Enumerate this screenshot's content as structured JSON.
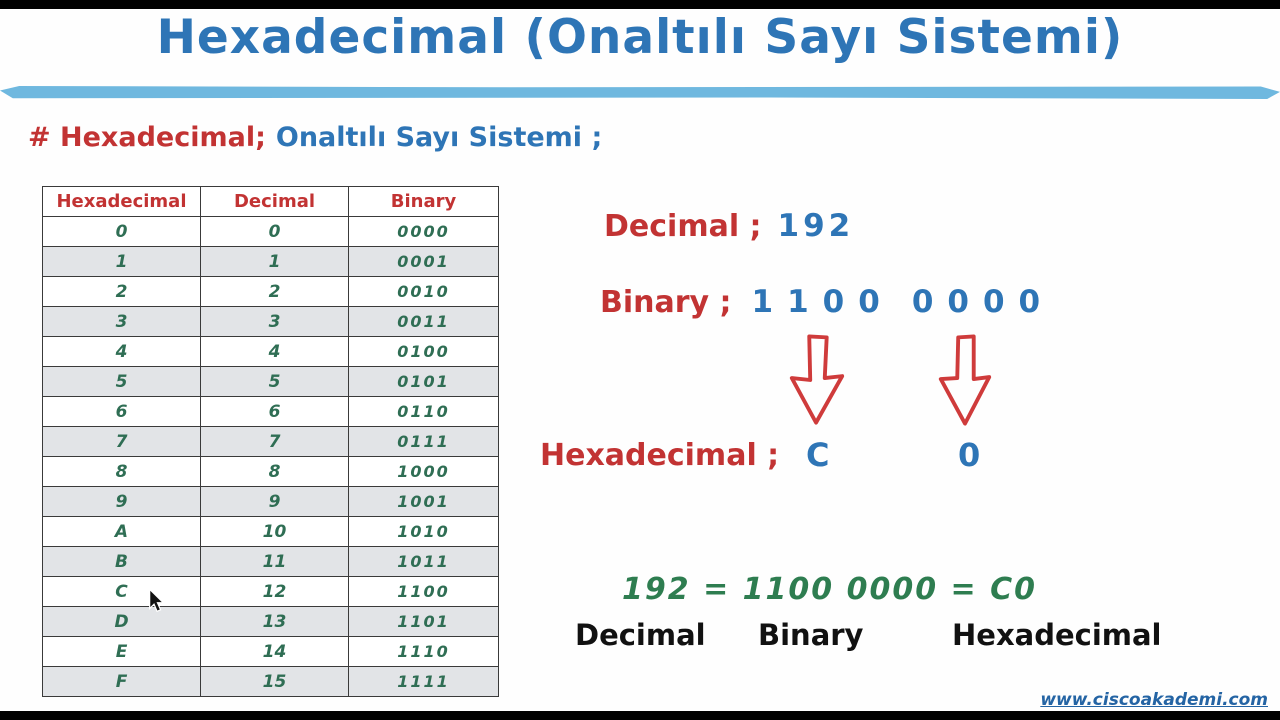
{
  "title": "Hexadecimal (Onaltılı Sayı Sistemi)",
  "subtitle": {
    "red": "# Hexadecimal;",
    "blue": "Onaltılı Sayı Sistemi ;"
  },
  "table": {
    "headers": [
      "Hexadecimal",
      "Decimal",
      "Binary"
    ],
    "rows": [
      [
        "0",
        "0",
        "0000"
      ],
      [
        "1",
        "1",
        "0001"
      ],
      [
        "2",
        "2",
        "0010"
      ],
      [
        "3",
        "3",
        "0011"
      ],
      [
        "4",
        "4",
        "0100"
      ],
      [
        "5",
        "5",
        "0101"
      ],
      [
        "6",
        "6",
        "0110"
      ],
      [
        "7",
        "7",
        "0111"
      ],
      [
        "8",
        "8",
        "1000"
      ],
      [
        "9",
        "9",
        "1001"
      ],
      [
        "A",
        "10",
        "1010"
      ],
      [
        "B",
        "11",
        "1011"
      ],
      [
        "C",
        "12",
        "1100"
      ],
      [
        "D",
        "13",
        "1101"
      ],
      [
        "E",
        "14",
        "1110"
      ],
      [
        "F",
        "15",
        "1111"
      ]
    ]
  },
  "example": {
    "decimal_label": "Decimal ;",
    "decimal_value": "192",
    "binary_label": "Binary ;",
    "binary_value_1": "1100",
    "binary_value_2": "0000",
    "hex_label": "Hexadecimal ;",
    "hex_value_1": "C",
    "hex_value_2": "0",
    "equation": "192 = 1100 0000 = C0",
    "equation_labels": [
      "Decimal",
      "Binary",
      "Hexadecimal"
    ]
  },
  "footer": {
    "website": "www.ciscoakademi.com"
  },
  "colors": {
    "label_red": "#c23333",
    "value_blue": "#2e75b6",
    "table_green": "#2f6e54",
    "equation_green": "#2e7d50",
    "brush_blue": "#5fb0dc",
    "arrow_red": "#cf3b3b"
  }
}
